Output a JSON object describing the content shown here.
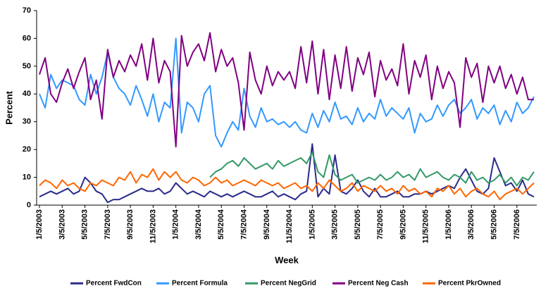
{
  "chart_data": {
    "type": "line",
    "y_label": "Percent",
    "x_label": "Week",
    "ylim": [
      0,
      70
    ],
    "yticks": [
      0,
      10,
      20,
      30,
      40,
      50,
      60,
      70
    ],
    "grid": false,
    "legend": "bottom",
    "categories": [
      "1/5/2003",
      null,
      null,
      null,
      "3/5/2003",
      null,
      null,
      null,
      "5/5/2003",
      null,
      null,
      null,
      "7/5/2003",
      null,
      null,
      null,
      "9/5/2003",
      null,
      null,
      null,
      "11/5/2003",
      null,
      null,
      null,
      "1/5/2004",
      null,
      null,
      null,
      "3/5/2004",
      null,
      null,
      null,
      "5/5/2004",
      null,
      null,
      null,
      "7/5/2004",
      null,
      null,
      null,
      "9/5/2004",
      null,
      null,
      null,
      "11/5/2004",
      null,
      null,
      null,
      "1/5/2005",
      null,
      null,
      null,
      "3/5/2005",
      null,
      null,
      null,
      "5/5/2005",
      null,
      null,
      null,
      "7/5/2005",
      null,
      null,
      null,
      "9/5/2005",
      null,
      null,
      null,
      "11/5/2005",
      null,
      null,
      null,
      "1/5/2006",
      null,
      null,
      null,
      "3/5/2006",
      null,
      null,
      null,
      "5/5/2006",
      null,
      null,
      null,
      "7/5/2006",
      null,
      null,
      null
    ],
    "series": [
      {
        "name": "Percent FwdCon",
        "color": "#2b2b8c",
        "values": [
          3,
          4,
          5,
          4,
          5,
          6,
          4,
          5,
          10,
          8,
          5,
          4,
          1,
          2,
          2,
          3,
          4,
          5,
          6,
          5,
          5,
          6,
          4,
          5,
          8,
          6,
          4,
          5,
          4,
          3,
          5,
          4,
          3,
          4,
          3,
          4,
          5,
          4,
          3,
          3,
          4,
          5,
          3,
          4,
          3,
          2,
          4,
          5,
          22,
          3,
          6,
          4,
          18,
          5,
          4,
          6,
          9,
          5,
          3,
          6,
          3,
          3,
          4,
          5,
          3,
          3,
          4,
          4,
          5,
          4,
          5,
          6,
          7,
          6,
          10,
          13,
          9,
          5,
          4,
          6,
          17,
          12,
          7,
          8,
          5,
          9,
          4,
          3
        ]
      },
      {
        "name": "Percent Formula",
        "color": "#3399ff",
        "values": [
          40,
          35,
          47,
          42,
          45,
          44,
          43,
          38,
          36,
          47,
          40,
          46,
          55,
          46,
          42,
          40,
          36,
          43,
          38,
          32,
          40,
          30,
          37,
          35,
          60,
          26,
          37,
          35,
          30,
          40,
          43,
          25,
          21,
          26,
          30,
          27,
          42,
          32,
          28,
          35,
          30,
          31,
          29,
          30,
          28,
          30,
          27,
          26,
          33,
          28,
          34,
          30,
          37,
          31,
          32,
          29,
          35,
          30,
          33,
          31,
          38,
          32,
          35,
          33,
          31,
          35,
          26,
          33,
          30,
          31,
          36,
          32,
          36,
          38,
          33,
          35,
          38,
          31,
          35,
          33,
          36,
          29,
          34,
          30,
          37,
          33,
          35,
          39
        ]
      },
      {
        "name": "Percent NegGrid",
        "color": "#339966",
        "values": [
          null,
          null,
          null,
          null,
          null,
          null,
          null,
          null,
          null,
          null,
          null,
          null,
          null,
          null,
          null,
          null,
          null,
          null,
          null,
          null,
          null,
          null,
          null,
          null,
          null,
          null,
          null,
          null,
          null,
          null,
          10,
          12,
          13,
          15,
          16,
          14,
          17,
          15,
          13,
          14,
          15,
          13,
          16,
          14,
          15,
          16,
          17,
          15,
          19,
          12,
          10,
          18,
          11,
          9,
          10,
          11,
          8,
          9,
          10,
          9,
          11,
          9,
          10,
          12,
          10,
          11,
          9,
          13,
          10,
          11,
          12,
          10,
          9,
          11,
          10,
          8,
          12,
          9,
          10,
          8,
          9,
          11,
          8,
          10,
          7,
          10,
          9,
          12
        ]
      },
      {
        "name": "Percent Neg Cash",
        "color": "#800080",
        "values": [
          47,
          53,
          40,
          37,
          44,
          49,
          42,
          48,
          53,
          38,
          45,
          31,
          56,
          46,
          52,
          48,
          54,
          50,
          58,
          45,
          60,
          44,
          52,
          48,
          21,
          61,
          50,
          55,
          58,
          52,
          62,
          48,
          56,
          50,
          53,
          44,
          27,
          55,
          45,
          40,
          50,
          43,
          48,
          45,
          48,
          42,
          57,
          44,
          59,
          40,
          56,
          38,
          54,
          42,
          57,
          41,
          53,
          47,
          55,
          39,
          52,
          45,
          49,
          43,
          58,
          40,
          52,
          46,
          54,
          38,
          50,
          42,
          48,
          44,
          28,
          53,
          46,
          51,
          37,
          50,
          44,
          50,
          42,
          47,
          40,
          46,
          38,
          38
        ]
      },
      {
        "name": "Percent PkrOwned",
        "color": "#ff6600",
        "values": [
          7,
          9,
          8,
          6,
          9,
          7,
          8,
          6,
          5,
          8,
          7,
          9,
          8,
          7,
          10,
          9,
          12,
          8,
          11,
          10,
          13,
          9,
          12,
          10,
          12,
          9,
          8,
          10,
          9,
          7,
          8,
          10,
          8,
          9,
          7,
          8,
          9,
          8,
          7,
          9,
          8,
          7,
          8,
          6,
          7,
          8,
          6,
          7,
          5,
          8,
          6,
          9,
          7,
          5,
          6,
          8,
          5,
          7,
          6,
          5,
          7,
          5,
          6,
          4,
          7,
          5,
          6,
          4,
          5,
          3,
          6,
          5,
          7,
          4,
          6,
          3,
          5,
          6,
          4,
          3,
          5,
          2,
          4,
          5,
          6,
          4,
          6,
          8
        ]
      }
    ]
  }
}
